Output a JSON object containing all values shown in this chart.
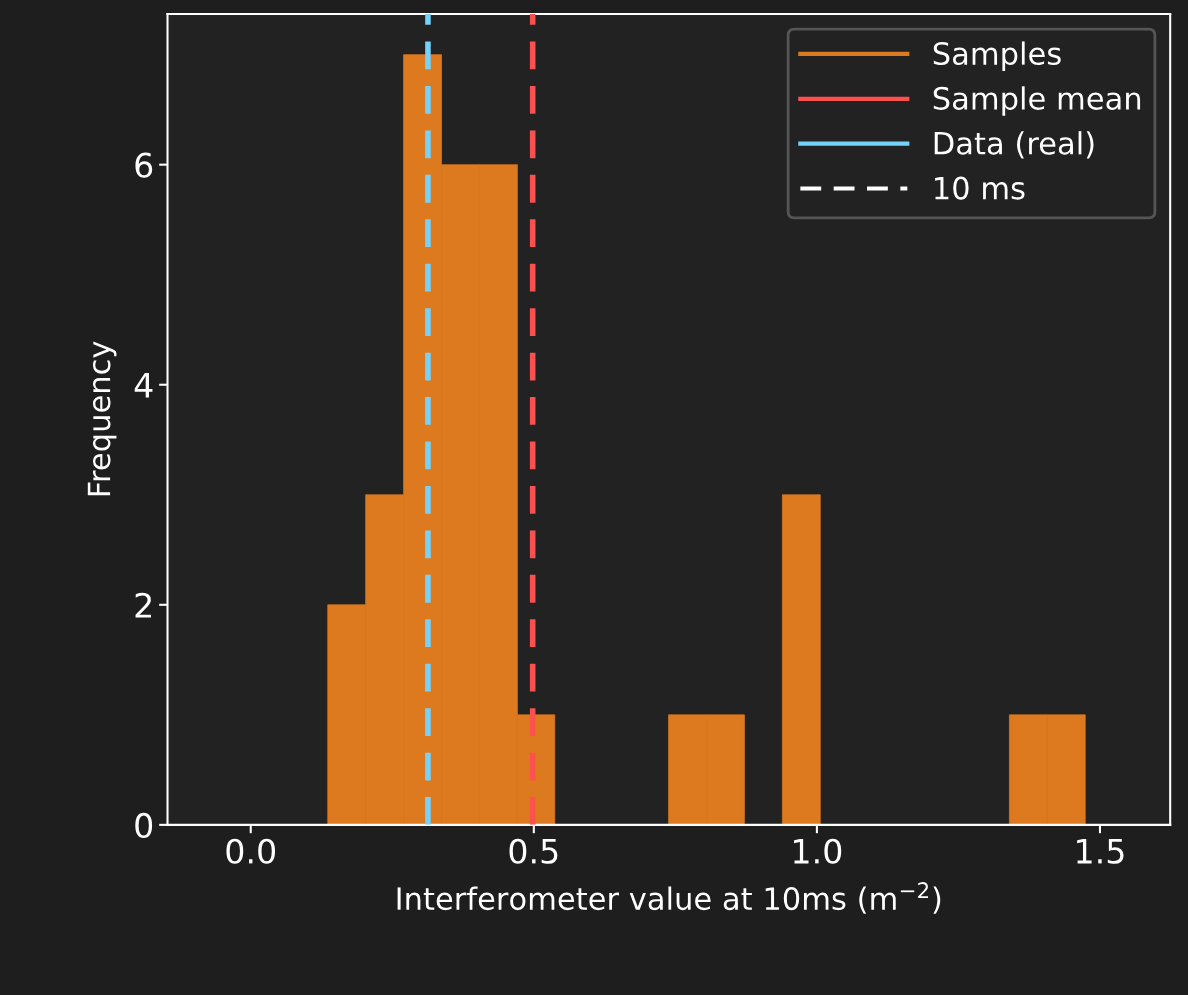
{
  "chart_data": {
    "type": "histogram",
    "xlabel": "Interferometer value at 10ms (m$^{−2}$)",
    "ylabel": "Frequency",
    "bins": [
      0.136,
      0.203,
      0.27,
      0.337,
      0.404,
      0.471,
      0.537,
      0.604,
      0.671,
      0.738,
      0.805,
      0.872,
      0.939,
      1.006,
      1.073,
      1.14,
      1.206,
      1.273,
      1.34,
      1.407,
      1.474
    ],
    "series": [
      {
        "name": "Samples",
        "color": "#dd7a1f",
        "values": [
          2,
          3,
          7,
          6,
          6,
          1,
          0,
          0,
          0,
          1,
          1,
          0,
          3,
          0,
          0,
          0,
          0,
          0,
          1,
          1
        ]
      },
      {
        "name": "Sample mean",
        "type": "line",
        "color": "#ff5050",
        "line_style": "solid"
      },
      {
        "name": "Data (real)",
        "type": "line",
        "color": "#73d2fe",
        "line_style": "solid"
      },
      {
        "name": "10 ms",
        "type": "line",
        "color": "#ffffff",
        "line_style": "dashed"
      }
    ],
    "ref_lines": [
      {
        "axis": "x",
        "value": 0.498,
        "color": "#ff5050",
        "line_style": "dashed"
      },
      {
        "axis": "x",
        "value": 0.313,
        "color": "#73d2fe",
        "line_style": "dashed"
      }
    ],
    "xlim": [
      -0.147,
      1.624
    ],
    "xticks": [
      {
        "value": 0,
        "label": "0.0"
      },
      {
        "value": 0.5,
        "label": "0.5"
      },
      {
        "value": 1,
        "label": "1.0"
      },
      {
        "value": 1.5,
        "label": "1.5"
      }
    ],
    "ylim": [
      0,
      7.37
    ],
    "yticks": [
      0,
      2,
      4,
      6
    ],
    "grid": false,
    "legend": "top right"
  }
}
